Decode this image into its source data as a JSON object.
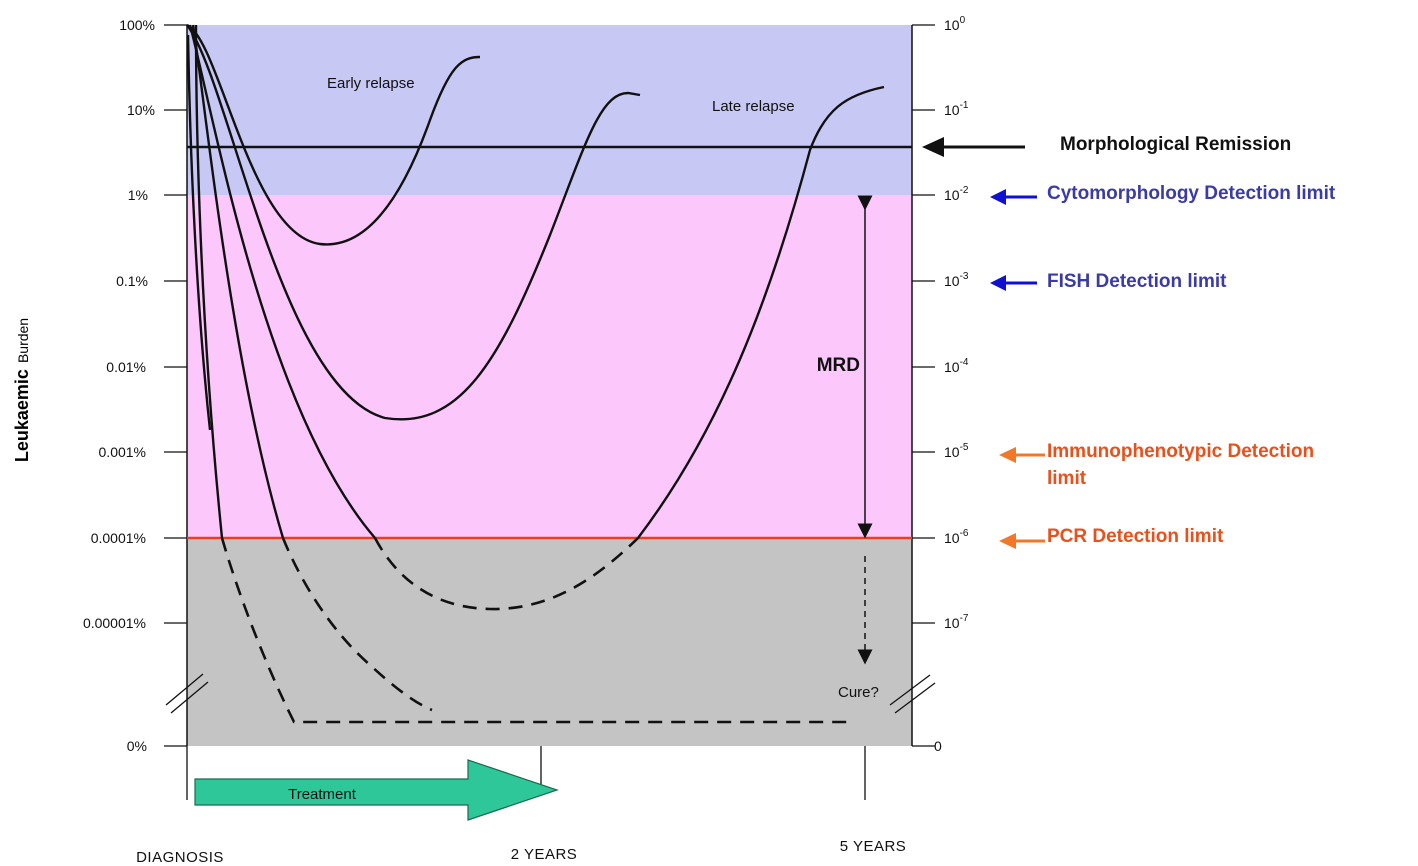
{
  "colors": {
    "blue_band": "#c8c8f5",
    "pink_band": "#fcc8fc",
    "gray_band": "#c4c4c4",
    "pcr_line": "#e8401c",
    "blue_text": "#3b3ba8",
    "orange_text": "#e8501c",
    "blue_arrow": "#1010d0",
    "orange_arrow": "#f07828",
    "treatment_arrow": "#2ec79a"
  },
  "y_axis": {
    "label_bold": "Leukaemic",
    "label_normal": "Burden",
    "left_ticks": [
      "100%",
      "10%",
      "1%",
      "0.1%",
      "0.01%",
      "0.001%",
      "0.0001%",
      "0.00001%",
      "0%"
    ],
    "right_ticks": [
      {
        "base": "10",
        "exp": "0"
      },
      {
        "base": "10",
        "exp": "-1"
      },
      {
        "base": "10",
        "exp": "-2"
      },
      {
        "base": "10",
        "exp": "-3"
      },
      {
        "base": "10",
        "exp": "-4"
      },
      {
        "base": "10",
        "exp": "-5"
      },
      {
        "base": "10",
        "exp": "-6"
      },
      {
        "base": "10",
        "exp": "-7"
      },
      {
        "base": "0",
        "exp": ""
      }
    ]
  },
  "annotations": {
    "early_relapse": "Early relapse",
    "late_relapse": "Late relapse",
    "mrd": "MRD",
    "cure": "Cure?",
    "treatment": "Treatment"
  },
  "limits": {
    "morphological": "Morphological Remission",
    "cytomorphology": "Cytomorphology Detection limit",
    "fish": "FISH Detection limit",
    "immuno_line1": "Immunophenotypic Detection",
    "immuno_line2": "limit",
    "pcr": "PCR Detection limit"
  },
  "x_axis": {
    "diagnosis": "DIAGNOSIS",
    "two_years": "2 YEARS",
    "five_years": "5 YEARS"
  }
}
